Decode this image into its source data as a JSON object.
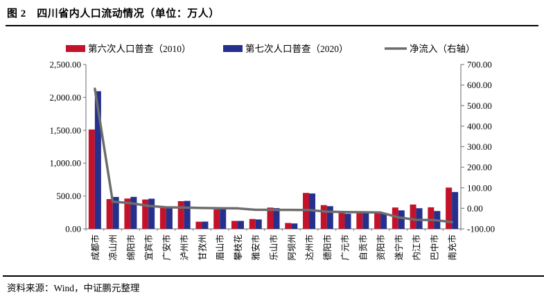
{
  "page": {
    "title": "图 2　四川省内人口流动情况（单位：万人）",
    "source": "资料来源：Wind，中证鹏元整理"
  },
  "colors": {
    "bar_2010": "#C3132B",
    "bar_2020": "#25308C",
    "net_line": "#6D6D6D",
    "axis": "#808080",
    "text": "#000000"
  },
  "chart_data": {
    "type": "bar",
    "title": "四川省内人口流动情况",
    "unit": "万人",
    "legend_position": "top",
    "grid": false,
    "categories": [
      "成都市",
      "凉山州",
      "绵阳市",
      "宜宾市",
      "广安市",
      "泸州市",
      "甘孜州",
      "眉山市",
      "攀枝花",
      "雅安市",
      "乐山市",
      "阿坝州",
      "达州市",
      "德阳市",
      "广元市",
      "自贡市",
      "资阳市",
      "遂宁市",
      "内江市",
      "巴中市",
      "南充市"
    ],
    "series": [
      {
        "name": "第六次人口普查（2010）",
        "kind": "bar",
        "axis": "left",
        "color": "#C3132B",
        "values": [
          1511.9,
          453.3,
          461.4,
          447.2,
          320.6,
          421.8,
          109.2,
          295.1,
          121.4,
          150.7,
          323.5,
          89.9,
          546.8,
          361.6,
          248.4,
          267.9,
          251.2,
          325.2,
          370.3,
          328.3,
          627.9
        ]
      },
      {
        "name": "第七次人口普查（2020）",
        "kind": "bar",
        "axis": "left",
        "color": "#25308C",
        "values": [
          2093.8,
          485.9,
          486.8,
          458.9,
          325.5,
          425.4,
          110.8,
          295.5,
          121.2,
          143.5,
          316.0,
          82.3,
          538.5,
          345.6,
          230.4,
          248.9,
          230.8,
          281.4,
          314.1,
          271.2,
          560.8
        ]
      },
      {
        "name": "净流入（右轴）",
        "kind": "line",
        "axis": "right",
        "color": "#6D6D6D",
        "values": [
          581.9,
          32.6,
          25.4,
          11.7,
          4.9,
          3.6,
          1.6,
          0.4,
          -0.2,
          -7.2,
          -7.5,
          -7.6,
          -8.3,
          -16.0,
          -18.0,
          -19.0,
          -20.4,
          -43.8,
          -56.2,
          -57.1,
          -67.1
        ]
      }
    ],
    "left_axis": {
      "min": 0,
      "max": 2500,
      "tick_values": [
        0,
        500,
        1000,
        1500,
        2000,
        2500
      ],
      "tick_labels": [
        "0.00",
        "500.00",
        "1,000.00",
        "1,500.00",
        "2,000.00",
        "2,500.00"
      ]
    },
    "right_axis": {
      "min": -100,
      "max": 700,
      "tick_values": [
        -100,
        0,
        100,
        200,
        300,
        400,
        500,
        600,
        700
      ],
      "tick_labels": [
        "-100.00",
        "0.00",
        "100.00",
        "200.00",
        "300.00",
        "400.00",
        "500.00",
        "600.00",
        "700.00"
      ]
    }
  }
}
